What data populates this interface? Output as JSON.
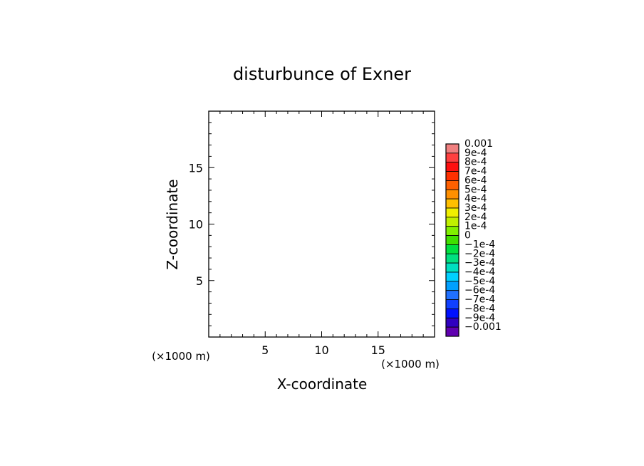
{
  "chart_data": {
    "type": "heatmap",
    "title": "disturbunce of Exner",
    "xlabel": "X-coordinate",
    "ylabel": "Z-coordinate",
    "x_unit_label": "(×1000 m)",
    "x_unit_label_right": "(×1000 m)",
    "xlim": [
      0,
      20
    ],
    "ylim": [
      0,
      20
    ],
    "xticks": [
      5,
      10,
      15
    ],
    "yticks": [
      5,
      10,
      15
    ],
    "x_minor_step": 1,
    "y_minor_step": 1,
    "grid": false,
    "values": [],
    "colorbar": {
      "labels": [
        "0.001",
        "9e-4",
        "8e-4",
        "7e-4",
        "6e-4",
        "5e-4",
        "4e-4",
        "3e-4",
        "2e-4",
        "1e-4",
        "0",
        "−1e-4",
        "−2e-4",
        "−3e-4",
        "−4e-4",
        "−5e-4",
        "−6e-4",
        "−7e-4",
        "−8e-4",
        "−9e-4",
        "−0.001"
      ],
      "colors": [
        "#f08080",
        "#ff4040",
        "#ff1010",
        "#ff3000",
        "#ff6000",
        "#ff9000",
        "#ffc000",
        "#f0f000",
        "#c0f000",
        "#80f000",
        "#40e000",
        "#00e040",
        "#00e080",
        "#00e0c0",
        "#00d0ff",
        "#00a0ff",
        "#2070ff",
        "#1040ff",
        "#0010ff",
        "#3000c0",
        "#6000b0"
      ]
    }
  }
}
